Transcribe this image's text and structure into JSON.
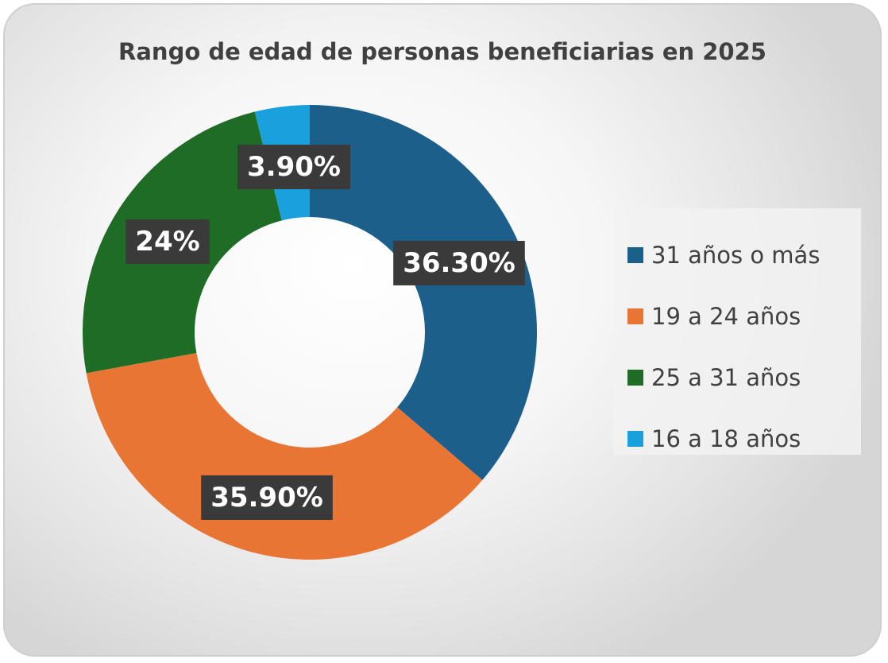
{
  "chart_data": {
    "type": "pie",
    "variant": "donut",
    "title": "Rango de edad de personas beneficiarias en 2025",
    "legend_position": "right",
    "slices": [
      {
        "name": "31 años o más",
        "value": 36.3,
        "label": "36.30%",
        "color": "#1b5f8a"
      },
      {
        "name": "19 a 24 años",
        "value": 35.9,
        "label": "35.90%",
        "color": "#e97535"
      },
      {
        "name": "25 a 31 años",
        "value": 24,
        "label": "24%",
        "color": "#1e6c25"
      },
      {
        "name": "16 a 18 años",
        "value": 3.9,
        "label": "3.90%",
        "color": "#1aa0dc"
      }
    ]
  }
}
